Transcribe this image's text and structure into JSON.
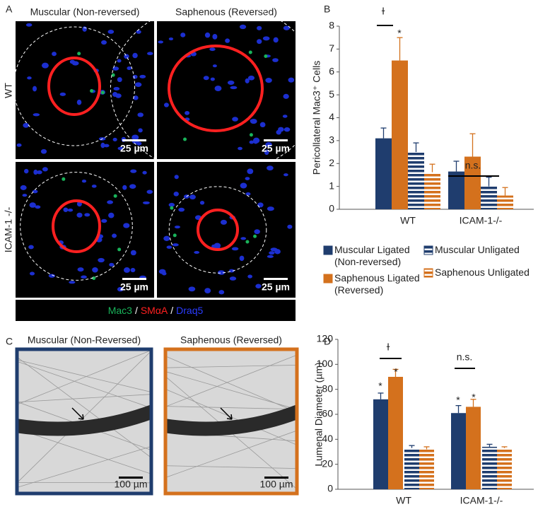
{
  "panel_labels": [
    "A",
    "B",
    "C",
    "D"
  ],
  "panel_a": {
    "columns": [
      "Muscular (Non-reversed)",
      "Saphenous (Reversed)"
    ],
    "rows": [
      "WT",
      "ICAM-1 -/-"
    ],
    "scale_bars": [
      "25 µm",
      "25 µm",
      "25 µm",
      "25 µm"
    ],
    "stains": [
      {
        "name": "Mac3",
        "color": "#19b35a"
      },
      {
        "name": "SMαA",
        "color": "#ff2020"
      },
      {
        "name": "Draq5",
        "color": "#2a3cff"
      }
    ],
    "separator": "/"
  },
  "panel_c": {
    "images": [
      {
        "title": "Muscular (Non-Reversed)",
        "border": "#1f3d6e",
        "scale_bar": "100 µm"
      },
      {
        "title": "Saphenous (Reversed)",
        "border": "#d4711d",
        "scale_bar": "100 µm"
      }
    ]
  },
  "chart_data": [
    {
      "type": "bar",
      "y_label": "Pericollateral Mac3⁺ Cells",
      "categories": [
        "WT",
        "ICAM-1-/-"
      ],
      "ylim": [
        0,
        8
      ],
      "yticks": [
        0,
        1,
        2,
        3,
        4,
        5,
        6,
        7,
        8
      ],
      "series": [
        {
          "name": "Muscular Ligated (Non-reversed)",
          "color": "#1f3d6e",
          "pattern": "solid",
          "values": [
            3.1,
            1.65
          ],
          "errors": [
            0.45,
            0.45
          ]
        },
        {
          "name": "Saphenous Ligated (Reversed)",
          "color": "#d4711d",
          "pattern": "solid",
          "values": [
            6.5,
            2.3
          ],
          "errors": [
            1.0,
            1.0
          ]
        },
        {
          "name": "Muscular Unligated",
          "color": "#1f3d6e",
          "pattern": "striped",
          "values": [
            2.5,
            1.0
          ],
          "errors": [
            0.4,
            0.4
          ]
        },
        {
          "name": "Saphenous Unligated",
          "color": "#d4711d",
          "pattern": "striped",
          "values": [
            1.62,
            0.6
          ],
          "errors": [
            0.35,
            0.35
          ]
        }
      ],
      "annotations": [
        "ɫ",
        "*",
        "n.s."
      ]
    },
    {
      "type": "bar",
      "y_label": "Lumenal Diameter (µm)",
      "categories": [
        "WT",
        "ICAM-1-/-"
      ],
      "ylim": [
        0,
        120
      ],
      "yticks": [
        0,
        20,
        40,
        60,
        80,
        100,
        120
      ],
      "series": [
        {
          "color": "#1f3d6e",
          "pattern": "solid",
          "values": [
            72,
            61
          ],
          "errors": [
            5,
            6
          ]
        },
        {
          "color": "#d4711d",
          "pattern": "solid",
          "values": [
            90,
            66
          ],
          "errors": [
            6,
            6
          ]
        },
        {
          "color": "#1f3d6e",
          "pattern": "striped",
          "values": [
            33,
            34
          ],
          "errors": [
            2,
            2
          ]
        },
        {
          "color": "#d4711d",
          "pattern": "striped",
          "values": [
            32,
            33
          ],
          "errors": [
            2,
            1
          ]
        }
      ],
      "annotations": [
        "*",
        "*",
        "ɫ",
        "n.s.",
        "*",
        "*"
      ]
    }
  ]
}
